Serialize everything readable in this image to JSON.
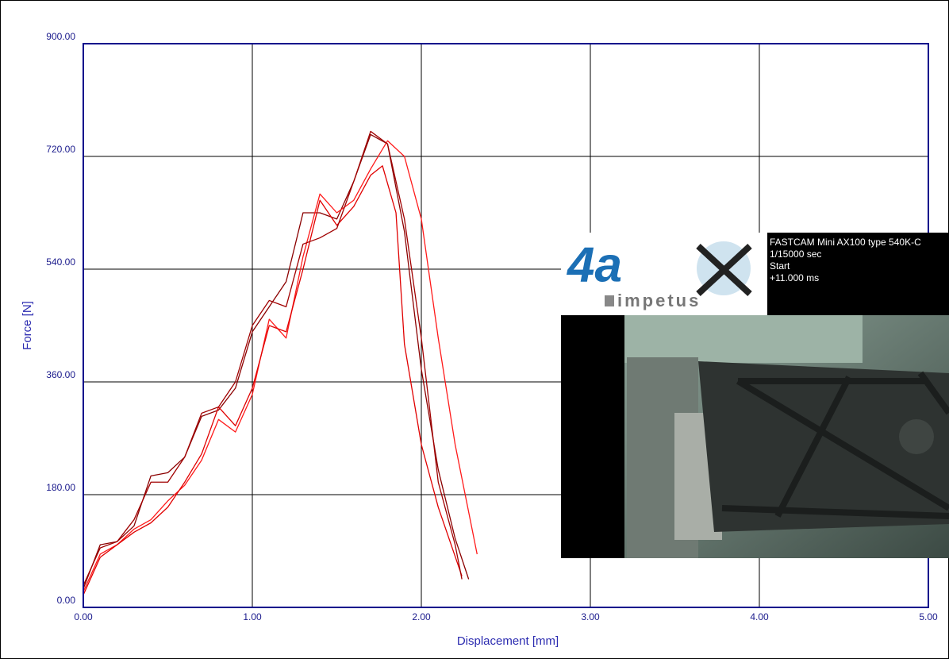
{
  "chart_data": {
    "type": "line",
    "xlabel": "Displacement [mm]",
    "ylabel": "Force [N]",
    "xlim": [
      0,
      5
    ],
    "ylim": [
      0,
      900
    ],
    "xticks": [
      {
        "value": 0,
        "label": "0.00"
      },
      {
        "value": 1,
        "label": "1.00"
      },
      {
        "value": 2,
        "label": "2.00"
      },
      {
        "value": 3,
        "label": "3.00"
      },
      {
        "value": 4,
        "label": "4.00"
      },
      {
        "value": 5,
        "label": "5.00"
      }
    ],
    "yticks": [
      {
        "value": 0,
        "label": "0.00"
      },
      {
        "value": 180,
        "label": "180.00"
      },
      {
        "value": 360,
        "label": "360.00"
      },
      {
        "value": 540,
        "label": "540.00"
      },
      {
        "value": 720,
        "label": "720.00"
      },
      {
        "value": 900,
        "label": "900.00"
      }
    ],
    "grid": true,
    "series": [
      {
        "color": "#8b0000",
        "x": [
          0.0,
          0.1,
          0.2,
          0.3,
          0.4,
          0.5,
          0.6,
          0.7,
          0.8,
          0.9,
          1.0,
          1.1,
          1.2,
          1.3,
          1.4,
          1.5,
          1.6,
          1.7,
          1.8,
          1.9,
          2.0,
          2.1,
          2.2,
          2.28
        ],
        "values": [
          30,
          100,
          105,
          130,
          210,
          215,
          240,
          305,
          315,
          350,
          440,
          480,
          520,
          630,
          630,
          620,
          680,
          755,
          740,
          600,
          380,
          220,
          110,
          45
        ]
      },
      {
        "color": "#ff1a1a",
        "x": [
          0.0,
          0.1,
          0.2,
          0.3,
          0.4,
          0.5,
          0.6,
          0.7,
          0.8,
          0.9,
          1.0,
          1.1,
          1.2,
          1.3,
          1.4,
          1.5,
          1.6,
          1.7,
          1.8,
          1.9,
          2.0,
          2.1,
          2.2,
          2.33
        ],
        "values": [
          25,
          85,
          100,
          125,
          140,
          170,
          195,
          235,
          300,
          280,
          340,
          460,
          430,
          560,
          660,
          630,
          650,
          700,
          745,
          720,
          620,
          430,
          260,
          85
        ]
      },
      {
        "color": "#e00000",
        "x": [
          0.0,
          0.1,
          0.2,
          0.3,
          0.4,
          0.5,
          0.6,
          0.7,
          0.8,
          0.9,
          1.0,
          1.1,
          1.2,
          1.3,
          1.4,
          1.5,
          1.6,
          1.7,
          1.77,
          1.85,
          1.9,
          2.0,
          2.1,
          2.24
        ],
        "values": [
          20,
          80,
          100,
          120,
          135,
          160,
          200,
          245,
          320,
          290,
          350,
          450,
          440,
          540,
          650,
          610,
          640,
          690,
          705,
          630,
          420,
          260,
          160,
          50
        ]
      },
      {
        "color": "#a00000",
        "x": [
          0.0,
          0.1,
          0.2,
          0.3,
          0.4,
          0.5,
          0.6,
          0.7,
          0.8,
          0.9,
          1.0,
          1.1,
          1.2,
          1.3,
          1.4,
          1.5,
          1.6,
          1.7,
          1.8,
          1.9,
          2.0,
          2.1,
          2.2,
          2.24
        ],
        "values": [
          35,
          95,
          105,
          140,
          200,
          200,
          240,
          310,
          320,
          360,
          450,
          490,
          480,
          580,
          590,
          605,
          680,
          760,
          740,
          620,
          430,
          200,
          100,
          45
        ]
      }
    ]
  },
  "inset": {
    "logo_mark": "4a",
    "logo_text": "impetus",
    "camera_info": [
      "FASTCAM Mini AX100 type 540K-C",
      "1/15000 sec",
      "Start",
      "+11.000 ms"
    ]
  }
}
